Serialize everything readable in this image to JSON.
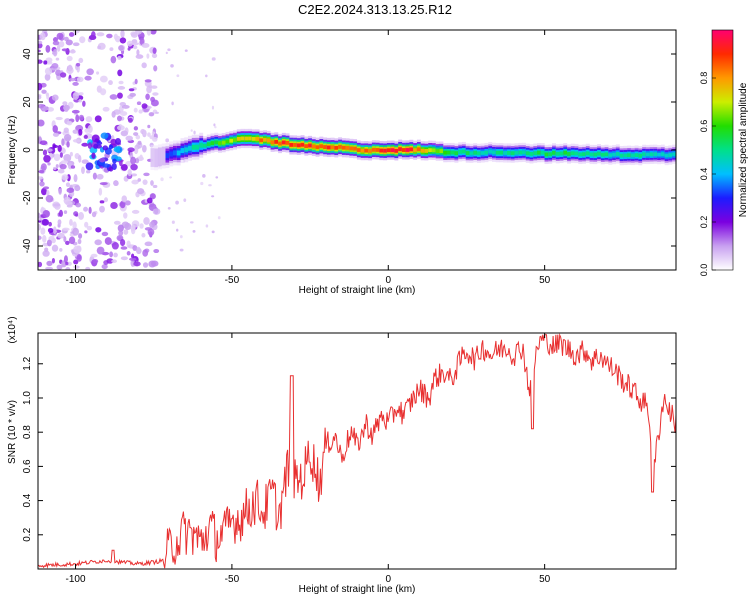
{
  "title": "C2E2.2024.313.13.25.R12",
  "chart_data": [
    {
      "type": "heatmap",
      "xlabel": "Height of straight line (km)",
      "ylabel": "Frequency (Hz)",
      "xlim": [
        -112,
        92
      ],
      "ylim": [
        -50,
        50
      ],
      "xticks": [
        -100,
        -50,
        0,
        50
      ],
      "yticks": [
        -40,
        -20,
        0,
        20,
        40
      ],
      "colorbar": {
        "label": "Normalized spectral amplitude",
        "range": [
          0,
          1
        ],
        "ticks": [
          "0.0",
          "0.2",
          "0.4",
          "0.6",
          "0.8"
        ],
        "tick_values": [
          0,
          0.2,
          0.4,
          0.6,
          0.8
        ],
        "colors": [
          "#ffffff",
          "#c8a0f0",
          "#7b00e0",
          "#1c1cff",
          "#00bfff",
          "#00e08a",
          "#22dd00",
          "#ccee00",
          "#ff9900",
          "#ff2a00",
          "#ff0070"
        ]
      },
      "ridge": {
        "description_points_x": [
          -75,
          -70,
          -65,
          -60,
          -55,
          -50,
          -45,
          -40,
          -35,
          -30,
          -25,
          -20,
          -15,
          -10,
          -5,
          0,
          5,
          10,
          20,
          30,
          40,
          50,
          60,
          70,
          80,
          90
        ],
        "center_freq_hz": [
          -3,
          -2,
          0,
          2,
          3,
          4,
          5,
          4,
          3,
          2,
          1.5,
          1,
          1,
          0,
          0,
          0,
          0,
          0,
          -1,
          -1,
          -1,
          -1.5,
          -1.5,
          -2,
          -2,
          -2
        ],
        "peak_amplitude": [
          0.25,
          0.35,
          0.45,
          0.55,
          0.6,
          0.7,
          0.75,
          0.85,
          0.9,
          0.95,
          0.92,
          0.9,
          0.85,
          0.85,
          0.88,
          0.92,
          0.95,
          0.8,
          0.55,
          0.5,
          0.5,
          0.55,
          0.55,
          0.5,
          0.5,
          0.45
        ]
      }
    },
    {
      "type": "line",
      "xlabel": "Height of straight line (km)",
      "ylabel": "SNR (10 * v/v)",
      "scale_label": "(x10⁴)",
      "xlim": [
        -112,
        92
      ],
      "ylim": [
        0,
        1.38
      ],
      "xticks": [
        -100,
        -50,
        0,
        50
      ],
      "yticks": [
        0.2,
        0.4,
        0.6,
        0.8,
        1.0,
        1.2
      ],
      "color": "#e83030",
      "x": [
        -112,
        -100,
        -90,
        -80,
        -75,
        -72,
        -70,
        -67,
        -65,
        -62,
        -60,
        -57,
        -55,
        -52,
        -50,
        -47,
        -45,
        -42,
        -40,
        -37,
        -35,
        -32,
        -30,
        -27,
        -25,
        -22,
        -20,
        -17,
        -15,
        -12,
        -10,
        -7,
        -5,
        -2,
        0,
        3,
        5,
        8,
        10,
        13,
        15,
        18,
        20,
        23,
        25,
        28,
        30,
        33,
        35,
        38,
        40,
        43,
        45,
        48,
        50,
        53,
        55,
        58,
        60,
        63,
        65,
        68,
        70,
        73,
        75,
        78,
        80,
        83,
        85,
        88,
        92
      ],
      "values": [
        0.02,
        0.03,
        0.05,
        0.03,
        0.04,
        0.05,
        0.12,
        0.18,
        0.22,
        0.2,
        0.15,
        0.25,
        0.18,
        0.22,
        0.28,
        0.3,
        0.35,
        0.4,
        0.33,
        0.45,
        0.3,
        0.6,
        0.5,
        0.55,
        0.7,
        0.5,
        0.72,
        0.78,
        0.65,
        0.8,
        0.72,
        0.85,
        0.78,
        0.9,
        0.85,
        0.95,
        0.9,
        1.0,
        1.05,
        1.0,
        1.12,
        1.15,
        1.1,
        1.22,
        1.28,
        1.22,
        1.3,
        1.25,
        1.28,
        1.3,
        1.25,
        1.3,
        1.05,
        1.32,
        1.35,
        1.3,
        1.32,
        1.28,
        1.25,
        1.28,
        1.22,
        1.25,
        1.2,
        1.15,
        1.1,
        1.05,
        1.0,
        0.95,
        0.6,
        1.0,
        0.85
      ]
    }
  ]
}
